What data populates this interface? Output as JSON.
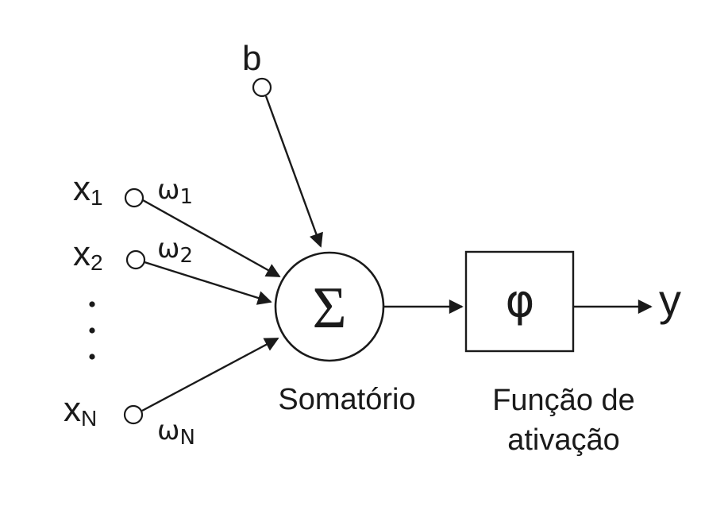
{
  "bias": {
    "label": "b"
  },
  "inputs": [
    {
      "label": "x",
      "sub": "1",
      "weight": "ω",
      "weight_sub": "1"
    },
    {
      "label": "x",
      "sub": "2",
      "weight": "ω",
      "weight_sub": "2"
    },
    {
      "label": "x",
      "sub": "N",
      "weight": "ω",
      "weight_sub": "N"
    }
  ],
  "ellipsis": "⋮",
  "summation": {
    "symbol": "Σ",
    "caption": "Somatório"
  },
  "activation": {
    "symbol": "φ",
    "caption_line1": "Função de",
    "caption_line2": "ativação"
  },
  "output": {
    "label": "y"
  }
}
